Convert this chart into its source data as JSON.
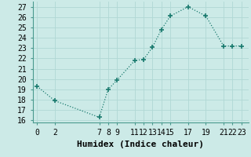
{
  "x": [
    0,
    2,
    7,
    8,
    9,
    11,
    12,
    13,
    14,
    15,
    17,
    19,
    21,
    22,
    23
  ],
  "y": [
    19.3,
    17.9,
    16.3,
    19.0,
    19.9,
    21.8,
    21.9,
    23.1,
    24.8,
    26.1,
    27.0,
    26.1,
    23.2,
    23.2,
    23.2
  ],
  "xlim": [
    -0.5,
    23.8
  ],
  "ylim": [
    15.8,
    27.5
  ],
  "yticks": [
    16,
    17,
    18,
    19,
    20,
    21,
    22,
    23,
    24,
    25,
    26,
    27
  ],
  "xticks": [
    0,
    2,
    7,
    8,
    9,
    11,
    12,
    13,
    14,
    15,
    17,
    19,
    21,
    22,
    23
  ],
  "xlabel": "Humidex (Indice chaleur)",
  "line_color": "#1a7a6e",
  "marker_color": "#1a7a6e",
  "bg_color": "#cceae7",
  "grid_color": "#b0d8d4",
  "xlabel_fontsize": 8,
  "tick_fontsize": 7
}
